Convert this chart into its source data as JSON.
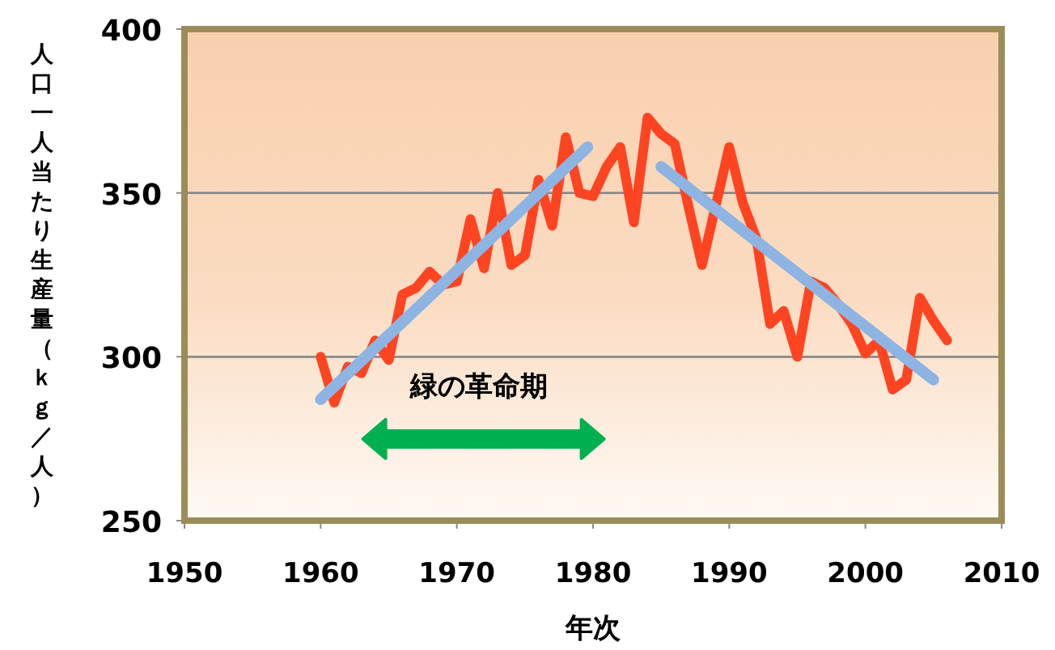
{
  "chart_data": {
    "type": "line",
    "xlabel": "年次",
    "ylabel": "人口一人当たり生産量（ｋｇ／人）",
    "xlim": [
      1950,
      2010
    ],
    "xticks": [
      1950,
      1960,
      1970,
      1980,
      1990,
      2000,
      2010
    ],
    "ylim": [
      250,
      400
    ],
    "yticks": [
      250,
      300,
      350,
      400
    ],
    "grid": "y",
    "marker": "none",
    "line_style": "solid",
    "series": [
      {
        "color": "#ff4422",
        "x": [
          1960,
          1961,
          1962,
          1963,
          1964,
          1965,
          1966,
          1967,
          1968,
          1969,
          1970,
          1971,
          1972,
          1973,
          1974,
          1975,
          1976,
          1977,
          1978,
          1979,
          1980,
          1981,
          1982,
          1983,
          1984,
          1985,
          1986,
          1987,
          1988,
          1989,
          1990,
          1991,
          1992,
          1993,
          1994,
          1995,
          1996,
          1997,
          1998,
          1999,
          2000,
          2001,
          2002,
          2003,
          2004,
          2005,
          2006
        ],
        "values": [
          300,
          286,
          297,
          295,
          305,
          299,
          319,
          321,
          326,
          322,
          323,
          342,
          327,
          350,
          328,
          331,
          354,
          340,
          367,
          350,
          349,
          358,
          364,
          341,
          373,
          368,
          365,
          346,
          328,
          346,
          364,
          347,
          336,
          310,
          314,
          300,
          323,
          321,
          316,
          310,
          301,
          305,
          290,
          293,
          318,
          311,
          305
        ]
      },
      {
        "color": "#8db4e2",
        "x": [
          1960,
          1979.6
        ],
        "values": [
          287,
          364
        ]
      },
      {
        "color": "#8db4e2",
        "x": [
          1985,
          2005
        ],
        "values": [
          358,
          293
        ]
      }
    ],
    "annotations": [
      "緑の革命期"
    ]
  }
}
